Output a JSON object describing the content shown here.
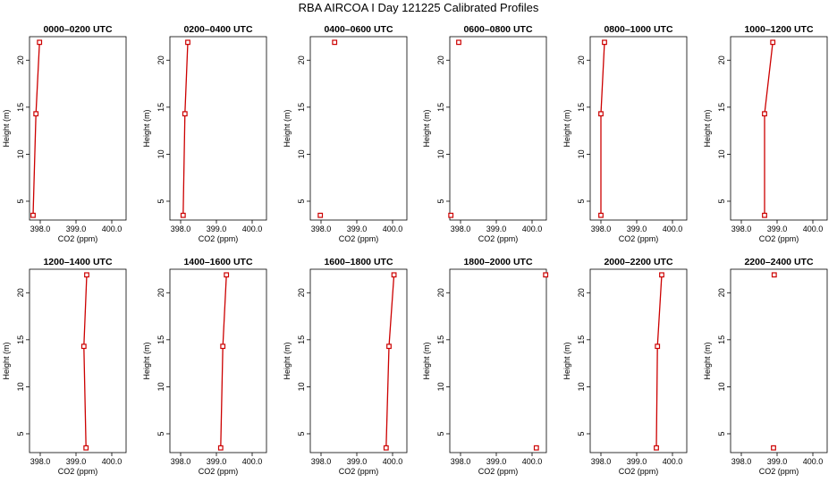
{
  "title": "RBA AIRCOA  I  Day 121225  Calibrated Profiles",
  "chart_data": [
    {
      "type": "line",
      "title": "0000–0200 UTC",
      "xlabel": "CO2 (ppm)",
      "ylabel": "Height (m)",
      "xlim": [
        397.7,
        400.4
      ],
      "ylim": [
        3,
        22.5
      ],
      "xticks": [
        "398.0",
        "399.0",
        "400.0"
      ],
      "yticks": [
        "5",
        "10",
        "15",
        "20"
      ],
      "x": [
        397.8,
        397.88,
        397.98
      ],
      "y": [
        3.5,
        14.3,
        21.9
      ],
      "connected": true,
      "color": "#cc0000"
    },
    {
      "type": "line",
      "title": "0200–0400 UTC",
      "xlabel": "CO2 (ppm)",
      "ylabel": "Height (m)",
      "xlim": [
        397.7,
        400.4
      ],
      "ylim": [
        3,
        22.5
      ],
      "xticks": [
        "398.0",
        "399.0",
        "400.0"
      ],
      "yticks": [
        "5",
        "10",
        "15",
        "20"
      ],
      "x": [
        398.07,
        398.12,
        398.2
      ],
      "y": [
        3.5,
        14.3,
        21.9
      ],
      "connected": true,
      "color": "#cc0000"
    },
    {
      "type": "scatter",
      "title": "0400–0600 UTC",
      "xlabel": "CO2 (ppm)",
      "ylabel": "Height (m)",
      "xlim": [
        397.7,
        400.4
      ],
      "ylim": [
        3,
        22.5
      ],
      "xticks": [
        "398.0",
        "399.0",
        "400.0"
      ],
      "yticks": [
        "5",
        "10",
        "15",
        "20"
      ],
      "x": [
        397.98,
        398.38
      ],
      "y": [
        3.5,
        21.9
      ],
      "connected": false,
      "color": "#cc0000"
    },
    {
      "type": "scatter",
      "title": "0600–0800 UTC",
      "xlabel": "CO2 (ppm)",
      "ylabel": "Height (m)",
      "xlim": [
        397.7,
        400.4
      ],
      "ylim": [
        3,
        22.5
      ],
      "xticks": [
        "398.0",
        "399.0",
        "400.0"
      ],
      "yticks": [
        "5",
        "10",
        "15",
        "20"
      ],
      "x": [
        397.73,
        397.95
      ],
      "y": [
        3.5,
        21.9
      ],
      "connected": false,
      "color": "#cc0000"
    },
    {
      "type": "line",
      "title": "0800–1000 UTC",
      "xlabel": "CO2 (ppm)",
      "ylabel": "Height (m)",
      "xlim": [
        397.7,
        400.4
      ],
      "ylim": [
        3,
        22.5
      ],
      "xticks": [
        "398.0",
        "399.0",
        "400.0"
      ],
      "yticks": [
        "5",
        "10",
        "15",
        "20"
      ],
      "x": [
        398.0,
        398.0,
        398.1
      ],
      "y": [
        3.5,
        14.3,
        21.9
      ],
      "connected": true,
      "color": "#cc0000"
    },
    {
      "type": "line",
      "title": "1000–1200 UTC",
      "xlabel": "CO2 (ppm)",
      "ylabel": "Height (m)",
      "xlim": [
        397.7,
        400.4
      ],
      "ylim": [
        3,
        22.5
      ],
      "xticks": [
        "398.0",
        "399.0",
        "400.0"
      ],
      "yticks": [
        "5",
        "10",
        "15",
        "20"
      ],
      "x": [
        398.65,
        398.65,
        398.88
      ],
      "y": [
        3.5,
        14.3,
        21.9
      ],
      "connected": true,
      "color": "#cc0000"
    },
    {
      "type": "line",
      "title": "1200–1400 UTC",
      "xlabel": "CO2 (ppm)",
      "ylabel": "Height (m)",
      "xlim": [
        397.7,
        400.4
      ],
      "ylim": [
        3,
        22.5
      ],
      "xticks": [
        "398.0",
        "399.0",
        "400.0"
      ],
      "yticks": [
        "5",
        "10",
        "15",
        "20"
      ],
      "x": [
        399.28,
        399.22,
        399.3
      ],
      "y": [
        3.5,
        14.3,
        21.9
      ],
      "connected": true,
      "color": "#cc0000"
    },
    {
      "type": "line",
      "title": "1400–1600 UTC",
      "xlabel": "CO2 (ppm)",
      "ylabel": "Height (m)",
      "xlim": [
        397.7,
        400.4
      ],
      "ylim": [
        3,
        22.5
      ],
      "xticks": [
        "398.0",
        "399.0",
        "400.0"
      ],
      "yticks": [
        "5",
        "10",
        "15",
        "20"
      ],
      "x": [
        399.12,
        399.18,
        399.28
      ],
      "y": [
        3.5,
        14.3,
        21.9
      ],
      "connected": true,
      "color": "#cc0000"
    },
    {
      "type": "line",
      "title": "1600–1800 UTC",
      "xlabel": "CO2 (ppm)",
      "ylabel": "Height (m)",
      "xlim": [
        397.7,
        400.4
      ],
      "ylim": [
        3,
        22.5
      ],
      "xticks": [
        "398.0",
        "399.0",
        "400.0"
      ],
      "yticks": [
        "5",
        "10",
        "15",
        "20"
      ],
      "x": [
        399.82,
        399.9,
        400.04
      ],
      "y": [
        3.5,
        14.3,
        21.9
      ],
      "connected": true,
      "color": "#cc0000"
    },
    {
      "type": "scatter",
      "title": "1800–2000 UTC",
      "xlabel": "CO2 (ppm)",
      "ylabel": "Height (m)",
      "xlim": [
        397.7,
        400.4
      ],
      "ylim": [
        3,
        22.5
      ],
      "xticks": [
        "398.0",
        "399.0",
        "400.0"
      ],
      "yticks": [
        "5",
        "10",
        "15",
        "20"
      ],
      "x": [
        400.12,
        400.38
      ],
      "y": [
        3.5,
        21.9
      ],
      "connected": false,
      "color": "#cc0000"
    },
    {
      "type": "line",
      "title": "2000–2200 UTC",
      "xlabel": "CO2 (ppm)",
      "ylabel": "Height (m)",
      "xlim": [
        397.7,
        400.4
      ],
      "ylim": [
        3,
        22.5
      ],
      "xticks": [
        "398.0",
        "399.0",
        "400.0"
      ],
      "yticks": [
        "5",
        "10",
        "15",
        "20"
      ],
      "x": [
        399.55,
        399.58,
        399.7
      ],
      "y": [
        3.5,
        14.3,
        21.9
      ],
      "connected": true,
      "color": "#cc0000"
    },
    {
      "type": "scatter",
      "title": "2200–2400 UTC",
      "xlabel": "CO2 (ppm)",
      "ylabel": "Height (m)",
      "xlim": [
        397.7,
        400.4
      ],
      "ylim": [
        3,
        22.5
      ],
      "xticks": [
        "398.0",
        "399.0",
        "400.0"
      ],
      "yticks": [
        "5",
        "10",
        "15",
        "20"
      ],
      "x": [
        398.9,
        398.92
      ],
      "y": [
        3.5,
        21.9
      ],
      "connected": false,
      "color": "#cc0000"
    }
  ]
}
